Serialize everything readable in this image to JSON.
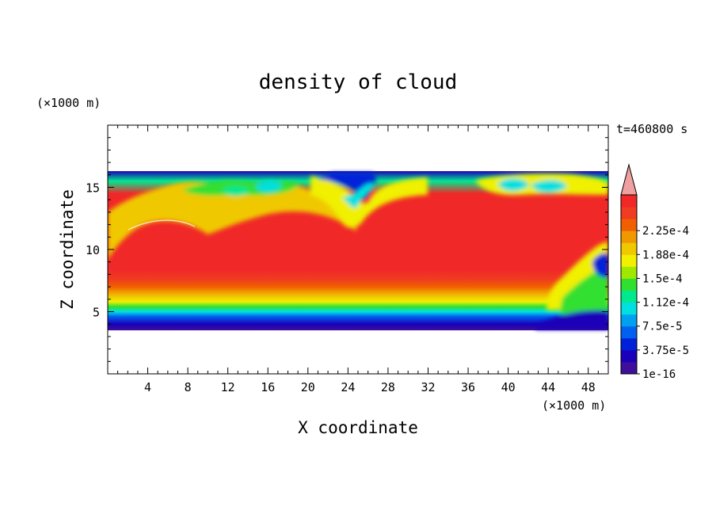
{
  "chart_data": {
    "type": "heatmap",
    "title": "density of cloud",
    "xlabel": "X coordinate",
    "ylabel": "Z coordinate",
    "x_unit": "(×1000 m)",
    "y_unit": "(×1000 m)",
    "time_label": "t=460800 s",
    "xlim": [
      0,
      50
    ],
    "ylim": [
      0,
      20
    ],
    "x_ticks": [
      4,
      8,
      12,
      16,
      20,
      24,
      28,
      32,
      36,
      40,
      44,
      48
    ],
    "y_ticks": [
      5,
      10,
      15
    ],
    "colorbar": {
      "labels": [
        "1e-16",
        "3.75e-5",
        "7.5e-5",
        "1.12e-4",
        "1.5e-4",
        "1.88e-4",
        "2.25e-4"
      ],
      "colors": [
        "#3d0f9a",
        "#1a00b8",
        "#0020d8",
        "#0060f0",
        "#00a0f0",
        "#00e0e0",
        "#00e890",
        "#30e030",
        "#a0e800",
        "#f0f000",
        "#f0c800",
        "#f09800",
        "#f06000",
        "#f03c20",
        "#f02828"
      ],
      "extend_color": "#f0a0a0"
    },
    "cloud_layer": {
      "z_range": [
        3.5,
        16.3
      ],
      "profile_z": [
        3.5,
        4.0,
        4.6,
        5.0,
        5.4,
        5.8,
        6.2,
        6.6,
        7.0,
        7.6,
        8.4,
        9.2,
        14.5,
        15.5,
        16.3
      ],
      "profile_level": [
        0,
        1,
        3,
        5,
        7,
        9,
        10,
        11,
        12,
        13,
        14,
        14,
        14,
        6,
        1
      ]
    }
  }
}
